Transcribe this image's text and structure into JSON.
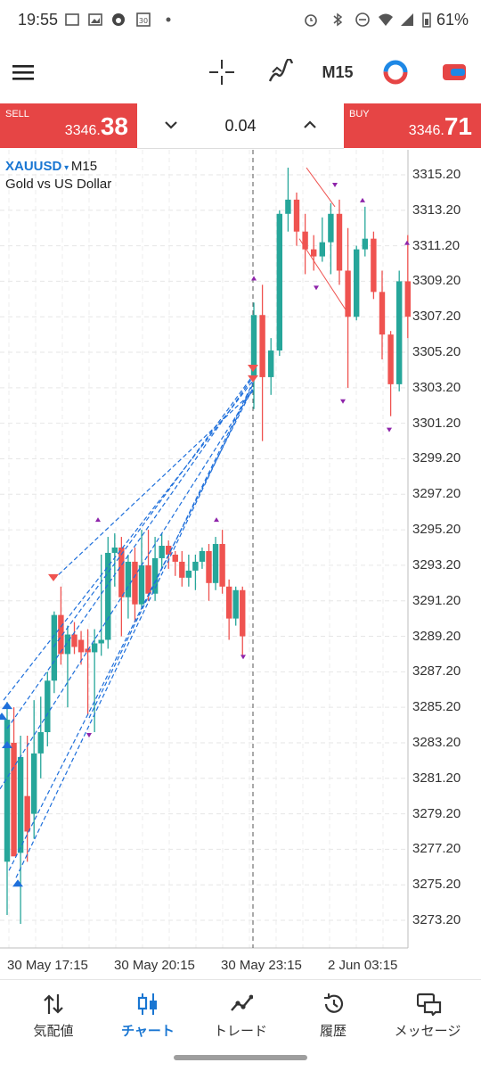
{
  "status_bar": {
    "time": "19:55",
    "battery": "61%"
  },
  "toolbar": {
    "menu_icon": "hamburger-menu-icon",
    "timeframe": "M15"
  },
  "quote": {
    "sell_label": "SELL",
    "sell_price_small": "3346.",
    "sell_price_big": "38",
    "volume": "0.04",
    "buy_label": "BUY",
    "buy_price_small": "3346.",
    "buy_price_big": "71"
  },
  "chart_header": {
    "symbol": "XAUUSD",
    "timeframe": "M15",
    "description": "Gold vs US Dollar"
  },
  "chart_data": {
    "type": "candlestick",
    "y_ticks": [
      "3315.20",
      "3313.20",
      "3311.20",
      "3309.20",
      "3307.20",
      "3305.20",
      "3303.20",
      "3301.20",
      "3299.20",
      "3297.20",
      "3295.20",
      "3293.20",
      "3291.20",
      "3289.20",
      "3287.20",
      "3285.20",
      "3283.20",
      "3281.20",
      "3279.20",
      "3277.20",
      "3275.20",
      "3273.20"
    ],
    "ylim": [
      3272.2,
      3316.2
    ],
    "x_ticks": [
      "30 May 17:15",
      "30 May 20:15",
      "30 May 23:15",
      "2 Jun 03:15"
    ],
    "colors": {
      "up": "#26a69a",
      "down": "#ef5350",
      "trade": "#1e6fdb"
    },
    "candles": [
      {
        "o": 3276.5,
        "h": 3285.5,
        "l": 3273.5,
        "c": 3284.5
      },
      {
        "o": 3283.2,
        "h": 3285.2,
        "l": 3277.0,
        "c": 3276.8
      },
      {
        "o": 3277.0,
        "h": 3283.6,
        "l": 3273.0,
        "c": 3282.4
      },
      {
        "o": 3280.2,
        "h": 3283.6,
        "l": 3276.5,
        "c": 3278.2
      },
      {
        "o": 3279.2,
        "h": 3285.6,
        "l": 3277.8,
        "c": 3282.6
      },
      {
        "o": 3282.6,
        "h": 3285.8,
        "l": 3281.2,
        "c": 3283.8
      },
      {
        "o": 3283.8,
        "h": 3287.2,
        "l": 3283.0,
        "c": 3286.7
      },
      {
        "o": 3286.7,
        "h": 3290.6,
        "l": 3286.0,
        "c": 3290.4
      },
      {
        "o": 3290.4,
        "h": 3292.0,
        "l": 3287.6,
        "c": 3288.2
      },
      {
        "o": 3288.2,
        "h": 3289.8,
        "l": 3285.2,
        "c": 3289.3
      },
      {
        "o": 3289.3,
        "h": 3290.0,
        "l": 3288.2,
        "c": 3288.6
      },
      {
        "o": 3289.0,
        "h": 3289.5,
        "l": 3287.6,
        "c": 3288.3
      },
      {
        "o": 3288.5,
        "h": 3289.6,
        "l": 3284.8,
        "c": 3288.3
      },
      {
        "o": 3288.3,
        "h": 3289.6,
        "l": 3283.8,
        "c": 3288.8
      },
      {
        "o": 3288.8,
        "h": 3293.8,
        "l": 3288.1,
        "c": 3289.0
      },
      {
        "o": 3289.0,
        "h": 3294.8,
        "l": 3288.5,
        "c": 3293.9
      },
      {
        "o": 3293.9,
        "h": 3295.0,
        "l": 3292.0,
        "c": 3294.2
      },
      {
        "o": 3294.2,
        "h": 3294.8,
        "l": 3289.2,
        "c": 3291.4
      },
      {
        "o": 3291.4,
        "h": 3293.8,
        "l": 3290.2,
        "c": 3293.4
      },
      {
        "o": 3293.4,
        "h": 3294.2,
        "l": 3290.0,
        "c": 3291.0
      },
      {
        "o": 3291.0,
        "h": 3295.2,
        "l": 3290.8,
        "c": 3293.2
      },
      {
        "o": 3293.2,
        "h": 3295.2,
        "l": 3291.2,
        "c": 3291.6
      },
      {
        "o": 3291.6,
        "h": 3294.8,
        "l": 3291.2,
        "c": 3293.6
      },
      {
        "o": 3293.6,
        "h": 3295.0,
        "l": 3293.0,
        "c": 3294.3
      },
      {
        "o": 3294.3,
        "h": 3294.6,
        "l": 3293.0,
        "c": 3293.8
      },
      {
        "o": 3293.8,
        "h": 3294.0,
        "l": 3292.6,
        "c": 3293.4
      },
      {
        "o": 3293.4,
        "h": 3294.0,
        "l": 3292.0,
        "c": 3292.5
      },
      {
        "o": 3292.5,
        "h": 3293.8,
        "l": 3292.0,
        "c": 3292.9
      },
      {
        "o": 3292.9,
        "h": 3293.8,
        "l": 3291.8,
        "c": 3293.4
      },
      {
        "o": 3293.4,
        "h": 3294.2,
        "l": 3293.0,
        "c": 3294.0
      },
      {
        "o": 3294.0,
        "h": 3294.4,
        "l": 3291.2,
        "c": 3292.2
      },
      {
        "o": 3292.2,
        "h": 3294.8,
        "l": 3291.8,
        "c": 3294.4
      },
      {
        "o": 3294.4,
        "h": 3295.2,
        "l": 3291.6,
        "c": 3292.0
      },
      {
        "o": 3292.0,
        "h": 3292.4,
        "l": 3289.0,
        "c": 3290.2
      },
      {
        "o": 3290.2,
        "h": 3292.0,
        "l": 3289.8,
        "c": 3291.8
      },
      {
        "o": 3291.8,
        "h": 3292.0,
        "l": 3288.0,
        "c": 3289.2
      },
      {
        "o": 3303.8,
        "h": 3308.0,
        "l": 3302.0,
        "c": 3307.3
      },
      {
        "o": 3307.3,
        "h": 3309.0,
        "l": 3300.2,
        "c": 3303.8
      },
      {
        "o": 3303.8,
        "h": 3306.0,
        "l": 3302.8,
        "c": 3305.3
      },
      {
        "o": 3305.3,
        "h": 3313.2,
        "l": 3305.0,
        "c": 3313.0
      },
      {
        "o": 3313.0,
        "h": 3315.6,
        "l": 3312.0,
        "c": 3313.8
      },
      {
        "o": 3313.8,
        "h": 3314.2,
        "l": 3311.2,
        "c": 3312.0
      },
      {
        "o": 3312.0,
        "h": 3313.0,
        "l": 3309.6,
        "c": 3311.0
      },
      {
        "o": 3311.0,
        "h": 3311.8,
        "l": 3309.8,
        "c": 3310.6
      },
      {
        "o": 3310.6,
        "h": 3312.8,
        "l": 3310.3,
        "c": 3311.4
      },
      {
        "o": 3311.4,
        "h": 3313.6,
        "l": 3309.6,
        "c": 3313.0
      },
      {
        "o": 3313.0,
        "h": 3313.8,
        "l": 3309.0,
        "c": 3309.8
      },
      {
        "o": 3309.8,
        "h": 3312.2,
        "l": 3303.2,
        "c": 3307.2
      },
      {
        "o": 3307.2,
        "h": 3311.2,
        "l": 3307.0,
        "c": 3311.0
      },
      {
        "o": 3311.0,
        "h": 3313.4,
        "l": 3310.6,
        "c": 3311.6
      },
      {
        "o": 3311.6,
        "h": 3312.0,
        "l": 3308.2,
        "c": 3308.6
      },
      {
        "o": 3308.6,
        "h": 3309.8,
        "l": 3304.8,
        "c": 3306.2
      },
      {
        "o": 3306.2,
        "h": 3306.4,
        "l": 3301.6,
        "c": 3303.4
      },
      {
        "o": 3303.4,
        "h": 3309.8,
        "l": 3303.0,
        "c": 3309.2
      },
      {
        "o": 3309.2,
        "h": 3311.8,
        "l": 3306.0,
        "c": 3307.2
      }
    ]
  },
  "nav": [
    {
      "label": "気配値",
      "icon": "quotes-arrows-icon"
    },
    {
      "label": "チャート",
      "icon": "candlestick-chart-icon"
    },
    {
      "label": "トレード",
      "icon": "trade-line-icon"
    },
    {
      "label": "履歴",
      "icon": "history-clock-icon"
    },
    {
      "label": "メッセージ",
      "icon": "messages-chat-icon"
    }
  ]
}
